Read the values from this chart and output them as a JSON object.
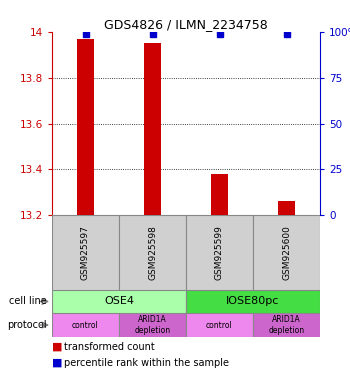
{
  "title": "GDS4826 / ILMN_2234758",
  "samples": [
    "GSM925597",
    "GSM925598",
    "GSM925599",
    "GSM925600"
  ],
  "bar_values": [
    13.97,
    13.95,
    13.38,
    13.26
  ],
  "percentile_values": [
    99,
    99,
    99,
    99
  ],
  "bar_color": "#cc0000",
  "percentile_color": "#0000cc",
  "ylim_left": [
    13.2,
    14.0
  ],
  "ylim_right": [
    0,
    100
  ],
  "yticks_left": [
    13.2,
    13.4,
    13.6,
    13.8,
    14.0
  ],
  "yticks_right": [
    0,
    25,
    50,
    75,
    100
  ],
  "ytick_labels_left": [
    "13.2",
    "13.4",
    "13.6",
    "13.8",
    "14"
  ],
  "ytick_labels_right": [
    "0",
    "25",
    "50",
    "75",
    "100%"
  ],
  "cell_line_groups": [
    {
      "label": "OSE4",
      "samples": [
        0,
        1
      ],
      "color": "#aaffaa"
    },
    {
      "label": "IOSE80pc",
      "samples": [
        2,
        3
      ],
      "color": "#44dd44"
    }
  ],
  "protocol_groups": [
    {
      "label": "control",
      "sample": 0,
      "color": "#ee88ee"
    },
    {
      "label": "ARID1A\ndepletion",
      "sample": 1,
      "color": "#cc66cc"
    },
    {
      "label": "control",
      "sample": 2,
      "color": "#ee88ee"
    },
    {
      "label": "ARID1A\ndepletion",
      "sample": 3,
      "color": "#cc66cc"
    }
  ],
  "bar_width": 0.25,
  "sample_box_color": "#d0d0d0",
  "sample_box_edge": "#888888",
  "left_axis_color": "#cc0000",
  "right_axis_color": "#0000cc",
  "grid_color": "#000000",
  "grid_lw": 0.6,
  "title_fontsize": 9
}
